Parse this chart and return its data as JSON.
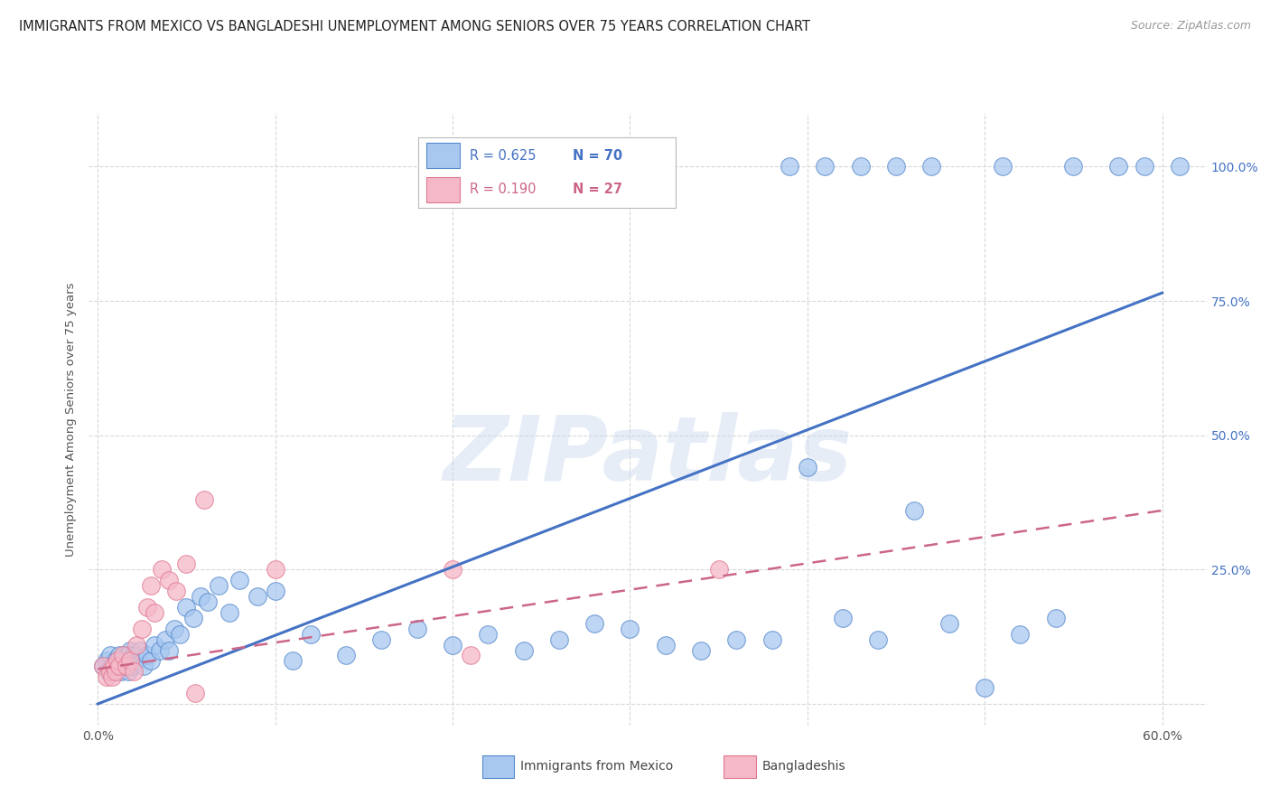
{
  "title": "IMMIGRANTS FROM MEXICO VS BANGLADESHI UNEMPLOYMENT AMONG SENIORS OVER 75 YEARS CORRELATION CHART",
  "source": "Source: ZipAtlas.com",
  "ylabel": "Unemployment Among Seniors over 75 years",
  "x_ticks": [
    0.0,
    0.1,
    0.2,
    0.3,
    0.4,
    0.5,
    0.6
  ],
  "x_tick_labels": [
    "0.0%",
    "",
    "",
    "",
    "",
    "",
    "60.0%"
  ],
  "y_ticks": [
    0.0,
    0.25,
    0.5,
    0.75,
    1.0
  ],
  "y_tick_labels_right": [
    "",
    "25.0%",
    "50.0%",
    "75.0%",
    "100.0%"
  ],
  "xlim": [
    -0.005,
    0.625
  ],
  "ylim": [
    -0.04,
    1.1
  ],
  "legend1_label": "Immigrants from Mexico",
  "legend2_label": "Bangladeshis",
  "R1": "0.625",
  "N1": "70",
  "R2": "0.190",
  "N2": "27",
  "color_blue_fill": "#a8c8f0",
  "color_blue_edge": "#5588cc",
  "color_pink_fill": "#f5b8c8",
  "color_pink_edge": "#e07890",
  "color_line_blue": "#4472c4",
  "color_line_pink": "#cc6688",
  "color_text_blue": "#4472c4",
  "color_text_pink": "#cc6688",
  "blue_x": [
    0.003,
    0.005,
    0.006,
    0.007,
    0.008,
    0.009,
    0.01,
    0.011,
    0.012,
    0.013,
    0.014,
    0.015,
    0.016,
    0.017,
    0.018,
    0.019,
    0.02,
    0.022,
    0.024,
    0.026,
    0.028,
    0.03,
    0.032,
    0.035,
    0.038,
    0.04,
    0.043,
    0.046,
    0.05,
    0.054,
    0.058,
    0.062,
    0.068,
    0.074,
    0.08,
    0.09,
    0.1,
    0.11,
    0.12,
    0.14,
    0.16,
    0.18,
    0.2,
    0.22,
    0.24,
    0.26,
    0.28,
    0.3,
    0.32,
    0.34,
    0.36,
    0.38,
    0.4,
    0.42,
    0.44,
    0.46,
    0.48,
    0.5,
    0.52,
    0.54,
    0.39,
    0.41,
    0.43,
    0.45,
    0.47,
    0.51,
    0.55,
    0.575,
    0.59,
    0.61
  ],
  "blue_y": [
    0.07,
    0.08,
    0.06,
    0.09,
    0.07,
    0.06,
    0.08,
    0.07,
    0.09,
    0.06,
    0.08,
    0.07,
    0.09,
    0.06,
    0.1,
    0.07,
    0.09,
    0.08,
    0.1,
    0.07,
    0.09,
    0.08,
    0.11,
    0.1,
    0.12,
    0.1,
    0.14,
    0.13,
    0.18,
    0.16,
    0.2,
    0.19,
    0.22,
    0.17,
    0.23,
    0.2,
    0.21,
    0.08,
    0.13,
    0.09,
    0.12,
    0.14,
    0.11,
    0.13,
    0.1,
    0.12,
    0.15,
    0.14,
    0.11,
    0.1,
    0.12,
    0.12,
    0.44,
    0.16,
    0.12,
    0.36,
    0.15,
    0.03,
    0.13,
    0.16,
    1.0,
    1.0,
    1.0,
    1.0,
    1.0,
    1.0,
    1.0,
    1.0,
    1.0,
    1.0
  ],
  "pink_x": [
    0.003,
    0.005,
    0.007,
    0.008,
    0.009,
    0.01,
    0.011,
    0.012,
    0.014,
    0.016,
    0.018,
    0.02,
    0.022,
    0.025,
    0.028,
    0.03,
    0.032,
    0.036,
    0.04,
    0.044,
    0.05,
    0.055,
    0.06,
    0.1,
    0.2,
    0.21,
    0.35
  ],
  "pink_y": [
    0.07,
    0.05,
    0.06,
    0.05,
    0.07,
    0.06,
    0.08,
    0.07,
    0.09,
    0.07,
    0.08,
    0.06,
    0.11,
    0.14,
    0.18,
    0.22,
    0.17,
    0.25,
    0.23,
    0.21,
    0.26,
    0.02,
    0.38,
    0.25,
    0.25,
    0.09,
    0.25
  ],
  "blue_line_x": [
    0.0,
    0.6
  ],
  "blue_line_y": [
    0.0,
    0.765
  ],
  "pink_line_x": [
    0.0,
    0.6
  ],
  "pink_line_y": [
    0.065,
    0.36
  ],
  "watermark_text": "ZIPatlas",
  "background_color": "#ffffff",
  "grid_color": "#d8d8d8"
}
